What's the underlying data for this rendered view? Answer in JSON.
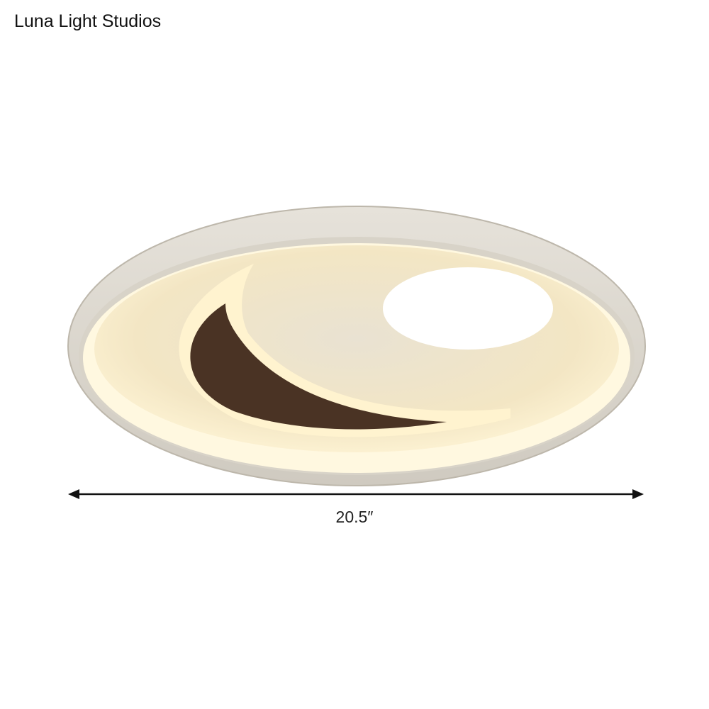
{
  "brand": {
    "name": "Luna Light Studios"
  },
  "product": {
    "dimension_label": "20.5″"
  },
  "colors": {
    "frame": "#dcd8d0",
    "glow": "#fdf1c8",
    "crescent": "#4a3324"
  }
}
